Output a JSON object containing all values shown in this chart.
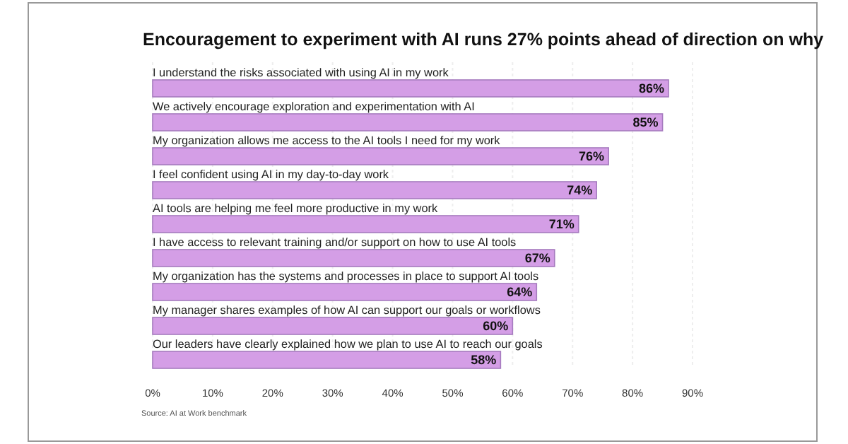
{
  "chart_data": {
    "type": "bar",
    "orientation": "horizontal",
    "title": "Encouragement to experiment with AI runs 27% points ahead of direction on why",
    "categories": [
      "I understand the risks associated with using AI in my work",
      "We actively encourage exploration and experimentation with AI",
      "My organization allows me access to the AI tools I need for my work",
      "I feel confident using AI in my day-to-day work",
      "AI tools are helping me feel more productive in my work",
      "I have access to relevant training and/or support on how to use AI tools",
      "My organization has the systems and processes in place to support AI tools",
      "My manager shares examples of how AI can support our goals or workflows",
      "Our leaders have clearly explained how we plan to use AI to reach our goals"
    ],
    "values": [
      86,
      85,
      76,
      74,
      71,
      67,
      64,
      60,
      58
    ],
    "value_labels": [
      "86%",
      "85%",
      "76%",
      "74%",
      "71%",
      "67%",
      "64%",
      "60%",
      "58%"
    ],
    "color": "#d49ee6",
    "xlim": [
      0,
      90
    ],
    "xticks": [
      {
        "value": 0,
        "label": "0%"
      },
      {
        "value": 10,
        "label": "10%"
      },
      {
        "value": 20,
        "label": "20%"
      },
      {
        "value": 30,
        "label": "30%"
      },
      {
        "value": 40,
        "label": "40%"
      },
      {
        "value": 50,
        "label": "50%"
      },
      {
        "value": 60,
        "label": "60%"
      },
      {
        "value": 70,
        "label": "70%"
      },
      {
        "value": 80,
        "label": "80%"
      },
      {
        "value": 90,
        "label": "90%"
      }
    ],
    "grid": "x",
    "annotations": [
      "Source: AI at Work benchmark"
    ]
  }
}
